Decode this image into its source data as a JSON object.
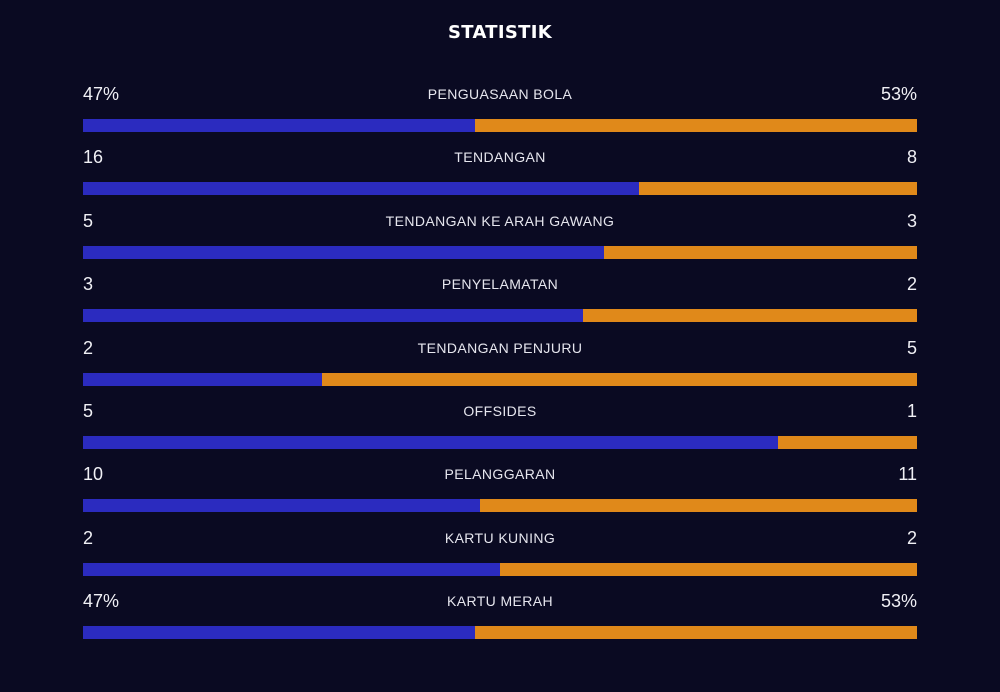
{
  "title": "STATISTIK",
  "colors": {
    "background": "#0a0a22",
    "home": "#2b2bbf",
    "away": "#e0891a"
  },
  "stats": [
    {
      "label": "PENGUASAAN BOLA",
      "home": "47%",
      "away": "53%",
      "home_share": 0.47
    },
    {
      "label": "TENDANGAN",
      "home": "16",
      "away": "8",
      "home_share": 0.667
    },
    {
      "label": "TENDANGAN KE ARAH GAWANG",
      "home": "5",
      "away": "3",
      "home_share": 0.625
    },
    {
      "label": "PENYELAMATAN",
      "home": "3",
      "away": "2",
      "home_share": 0.6
    },
    {
      "label": "TENDANGAN PENJURU",
      "home": "2",
      "away": "5",
      "home_share": 0.286
    },
    {
      "label": "OFFSIDES",
      "home": "5",
      "away": "1",
      "home_share": 0.833
    },
    {
      "label": "PELANGGARAN",
      "home": "10",
      "away": "11",
      "home_share": 0.476
    },
    {
      "label": "KARTU KUNING",
      "home": "2",
      "away": "2",
      "home_share": 0.5
    },
    {
      "label": "KARTU MERAH",
      "home": "47%",
      "away": "53%",
      "home_share": 0.47
    }
  ]
}
